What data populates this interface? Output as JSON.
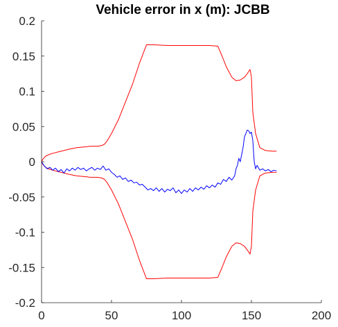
{
  "chart_data": {
    "type": "line",
    "title": "Vehicle error in x (m): JCBB",
    "xlabel": "",
    "ylabel": "",
    "xlim": [
      0,
      200
    ],
    "ylim": [
      -0.2,
      0.2
    ],
    "x_ticks": [
      0,
      50,
      100,
      150,
      200
    ],
    "y_ticks": [
      -0.2,
      -0.15,
      -0.1,
      -0.05,
      0,
      0.05,
      0.1,
      0.15,
      0.2
    ],
    "x_tick_labels": [
      "0",
      "50",
      "100",
      "150",
      "200"
    ],
    "y_tick_labels": [
      "-0.2",
      "-0.15",
      "-0.1",
      "-0.05",
      "0",
      "0.05",
      "0.1",
      "0.15",
      "0.2"
    ],
    "grid": false,
    "series": [
      {
        "color": "#ff0000",
        "x": [
          0,
          1,
          2,
          3,
          5,
          8,
          12,
          16,
          20,
          25,
          30,
          35,
          40,
          43,
          45,
          47,
          50,
          55,
          60,
          65,
          70,
          75,
          80,
          90,
          100,
          110,
          120,
          126,
          129,
          132,
          136,
          139,
          142,
          145,
          147,
          149,
          150,
          151,
          153,
          156,
          160,
          165,
          168
        ],
        "y": [
          0,
          0.004,
          0.006,
          0.008,
          0.01,
          0.012,
          0.014,
          0.016,
          0.018,
          0.02,
          0.021,
          0.022,
          0.022,
          0.023,
          0.025,
          0.03,
          0.04,
          0.06,
          0.085,
          0.11,
          0.14,
          0.166,
          0.166,
          0.165,
          0.165,
          0.165,
          0.165,
          0.164,
          0.15,
          0.135,
          0.12,
          0.115,
          0.116,
          0.12,
          0.125,
          0.131,
          0.12,
          0.07,
          0.04,
          0.02,
          0.016,
          0.015,
          0.015
        ]
      },
      {
        "color": "#ff0000",
        "x": [
          0,
          1,
          2,
          3,
          5,
          8,
          12,
          16,
          20,
          25,
          30,
          35,
          40,
          43,
          45,
          47,
          50,
          55,
          60,
          65,
          70,
          75,
          80,
          90,
          100,
          110,
          120,
          126,
          129,
          132,
          136,
          139,
          142,
          145,
          147,
          149,
          150,
          151,
          153,
          156,
          160,
          165,
          168
        ],
        "y": [
          0,
          -0.004,
          -0.006,
          -0.008,
          -0.01,
          -0.012,
          -0.014,
          -0.016,
          -0.018,
          -0.02,
          -0.021,
          -0.022,
          -0.022,
          -0.023,
          -0.025,
          -0.03,
          -0.04,
          -0.06,
          -0.085,
          -0.11,
          -0.14,
          -0.166,
          -0.166,
          -0.165,
          -0.165,
          -0.165,
          -0.165,
          -0.164,
          -0.15,
          -0.135,
          -0.12,
          -0.115,
          -0.116,
          -0.12,
          -0.125,
          -0.131,
          -0.12,
          -0.07,
          -0.04,
          -0.02,
          -0.016,
          -0.015,
          -0.015
        ]
      },
      {
        "color": "#0000ff",
        "x": [
          0,
          2,
          4,
          6,
          8,
          10,
          12,
          14,
          16,
          18,
          20,
          22,
          24,
          26,
          28,
          30,
          32,
          34,
          36,
          38,
          40,
          42,
          44,
          46,
          48,
          50,
          52,
          54,
          56,
          58,
          60,
          62,
          64,
          66,
          68,
          70,
          72,
          74,
          76,
          78,
          80,
          82,
          84,
          86,
          88,
          90,
          92,
          94,
          96,
          98,
          100,
          102,
          104,
          106,
          108,
          110,
          112,
          114,
          116,
          118,
          120,
          122,
          124,
          126,
          128,
          130,
          132,
          134,
          136,
          138,
          139,
          140,
          141,
          142,
          143,
          144,
          145,
          146,
          147,
          148,
          149,
          150,
          151,
          152,
          153,
          154,
          156,
          158,
          160,
          162,
          164,
          166,
          168
        ],
        "y": [
          0,
          -0.006,
          -0.01,
          -0.008,
          -0.012,
          -0.009,
          -0.014,
          -0.011,
          -0.016,
          -0.01,
          -0.013,
          -0.009,
          -0.012,
          -0.008,
          -0.011,
          -0.009,
          -0.013,
          -0.01,
          -0.008,
          -0.012,
          -0.009,
          -0.011,
          -0.006,
          -0.012,
          -0.01,
          -0.015,
          -0.018,
          -0.022,
          -0.02,
          -0.025,
          -0.023,
          -0.028,
          -0.026,
          -0.03,
          -0.029,
          -0.033,
          -0.032,
          -0.036,
          -0.04,
          -0.038,
          -0.041,
          -0.037,
          -0.042,
          -0.038,
          -0.043,
          -0.039,
          -0.041,
          -0.037,
          -0.044,
          -0.04,
          -0.045,
          -0.04,
          -0.043,
          -0.038,
          -0.042,
          -0.037,
          -0.04,
          -0.036,
          -0.039,
          -0.034,
          -0.037,
          -0.033,
          -0.036,
          -0.03,
          -0.032,
          -0.025,
          -0.028,
          -0.022,
          -0.026,
          -0.02,
          -0.01,
          -0.005,
          0.005,
          0.0,
          0.01,
          0.02,
          0.035,
          0.04,
          0.045,
          0.044,
          0.04,
          0.042,
          0.03,
          0.0,
          -0.01,
          -0.005,
          -0.012,
          -0.01,
          -0.013,
          -0.011,
          -0.014,
          -0.012,
          -0.013
        ]
      }
    ]
  }
}
